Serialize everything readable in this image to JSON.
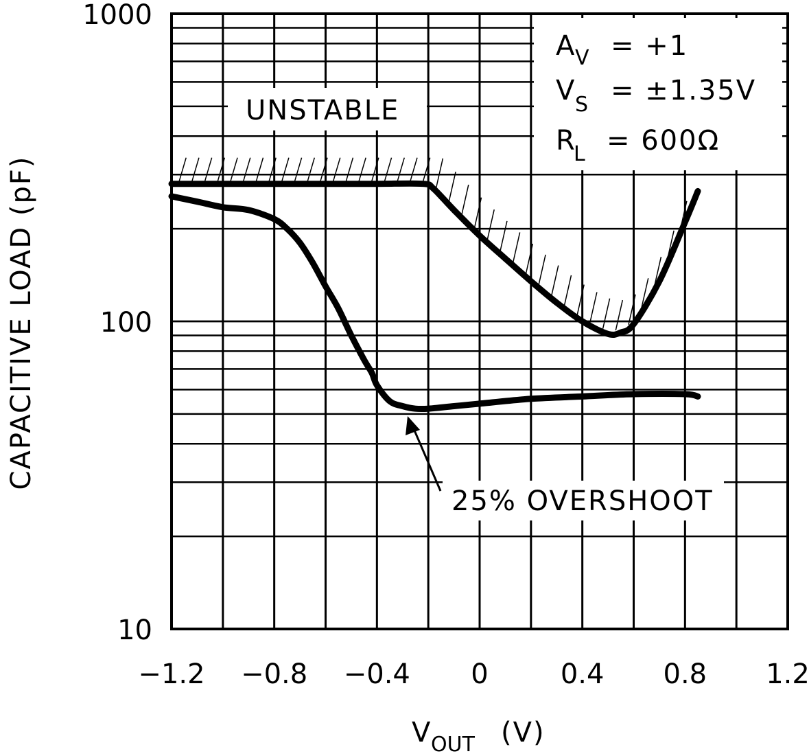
{
  "chart_data": {
    "type": "line",
    "xlabel": "V",
    "xlabel_sub": "OUT",
    "xlabel_unit": "(V)",
    "ylabel": "CAPACITIVE LOAD (pF)",
    "xlim": [
      -1.2,
      1.2
    ],
    "ylim": [
      10,
      1000
    ],
    "yscale": "log",
    "x_ticks": [
      "-1.2",
      "-0.8",
      "-0.4",
      "0",
      "0.4",
      "0.8",
      "1.2"
    ],
    "x_tick_values": [
      -1.2,
      -0.8,
      -0.4,
      0,
      0.4,
      0.8,
      1.2
    ],
    "y_ticks": [
      "10",
      "100",
      "1000"
    ],
    "y_tick_values": [
      10,
      100,
      1000
    ],
    "series": [
      {
        "name": "Unstable boundary",
        "x": [
          -1.2,
          -1.0,
          -0.8,
          -0.6,
          -0.4,
          -0.22,
          -0.18,
          -0.1,
          0.0,
          0.1,
          0.2,
          0.3,
          0.4,
          0.5,
          0.55,
          0.6,
          0.7,
          0.8,
          0.85
        ],
        "y": [
          280,
          280,
          280,
          280,
          280,
          280,
          270,
          230,
          190,
          160,
          135,
          115,
          100,
          91,
          92,
          98,
          135,
          210,
          265
        ]
      },
      {
        "name": "25% Overshoot",
        "x": [
          -1.2,
          -1.1,
          -1.0,
          -0.9,
          -0.8,
          -0.75,
          -0.7,
          -0.65,
          -0.6,
          -0.55,
          -0.5,
          -0.45,
          -0.42,
          -0.4,
          -0.35,
          -0.3,
          -0.25,
          -0.2,
          -0.1,
          0.0,
          0.2,
          0.4,
          0.6,
          0.8,
          0.85
        ],
        "y": [
          255,
          245,
          235,
          230,
          215,
          200,
          180,
          155,
          130,
          110,
          90,
          75,
          68,
          62,
          55,
          53,
          52,
          52,
          53,
          54,
          56,
          57,
          58,
          58,
          57
        ]
      }
    ],
    "annotations": {
      "unstable": "UNSTABLE",
      "overshoot": "25% OVERSHOOT",
      "conditions": [
        {
          "main": "A",
          "sub": "V",
          "rest": "= +1"
        },
        {
          "main": "V",
          "sub": "S",
          "rest": "= ±1.35V"
        },
        {
          "main": "R",
          "sub": "L",
          "rest": "= 600Ω"
        }
      ]
    },
    "grid": true
  }
}
